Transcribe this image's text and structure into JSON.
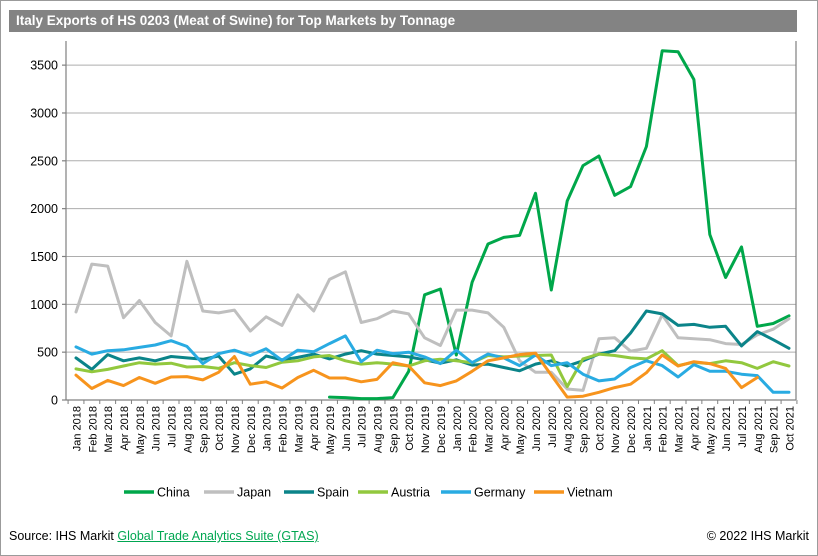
{
  "title": "Italy Exports of HS 0203 (Meat of Swine) for Top Markets by Tonnage",
  "footer": {
    "source_prefix": "Source: IHS Markit ",
    "source_link": "Global Trade Analytics Suite (GTAS)",
    "copyright": "© 2022 IHS Markit"
  },
  "colors": {
    "title_bar_bg": "#838383",
    "title_text": "#ffffff",
    "gridline": "#adadad",
    "axis": "#808080",
    "label_text": "#000000",
    "link_green": "#00a651"
  },
  "chart_data": {
    "type": "line",
    "title": "Italy Exports of HS 0203 (Meat of Swine) for Top Markets by Tonnage",
    "xlabel": "",
    "ylabel": "",
    "ylim": [
      0,
      3700
    ],
    "yticks": [
      0,
      500,
      1000,
      1500,
      2000,
      2500,
      3000,
      3500
    ],
    "grid": "horizontal",
    "legend_position": "bottom",
    "categories": [
      "Jan 2018",
      "Feb 2018",
      "Mar 2018",
      "Apr 2018",
      "May 2018",
      "Jun 2018",
      "Jul 2018",
      "Aug 2018",
      "Sep 2018",
      "Oct 2018",
      "Nov 2018",
      "Dec 2018",
      "Jan 2019",
      "Feb 2019",
      "Mar 2019",
      "Apr 2019",
      "May 2019",
      "Jun 2019",
      "Jul 2019",
      "Aug 2019",
      "Sep 2019",
      "Oct 2019",
      "Nov 2019",
      "Dec 2019",
      "Jan 2020",
      "Feb 2020",
      "Mar 2020",
      "Apr 2020",
      "May 2020",
      "Jun 2020",
      "Jul 2020",
      "Aug 2020",
      "Sep 2020",
      "Oct 2020",
      "Nov 2020",
      "Dec 2020",
      "Jan 2021",
      "Feb 2021",
      "Mar 2021",
      "Apr 2021",
      "May 2021",
      "Jun 2021",
      "Jul 2021",
      "Aug 2021",
      "Sep 2021",
      "Oct 2021"
    ],
    "series": [
      {
        "name": "China",
        "color": "#00a74a",
        "values": [
          null,
          null,
          null,
          null,
          null,
          null,
          null,
          null,
          null,
          null,
          null,
          null,
          null,
          null,
          null,
          null,
          30,
          25,
          15,
          15,
          25,
          300,
          1100,
          1160,
          470,
          1230,
          1630,
          1700,
          1720,
          2160,
          1150,
          2080,
          2450,
          2550,
          2140,
          2230,
          2650,
          3650,
          3640,
          3350,
          1730,
          1280,
          1600,
          770,
          800,
          880
        ]
      },
      {
        "name": "Japan",
        "color": "#bfbfbf",
        "values": [
          920,
          1420,
          1400,
          860,
          1040,
          810,
          670,
          1450,
          930,
          910,
          940,
          720,
          870,
          780,
          1100,
          930,
          1260,
          1340,
          810,
          850,
          930,
          900,
          650,
          570,
          940,
          940,
          910,
          760,
          410,
          290,
          290,
          115,
          100,
          640,
          650,
          510,
          540,
          890,
          650,
          640,
          630,
          590,
          580,
          680,
          740,
          850
        ]
      },
      {
        "name": "Spain",
        "color": "#0b8489",
        "values": [
          440,
          320,
          475,
          410,
          440,
          410,
          455,
          440,
          425,
          460,
          270,
          325,
          460,
          420,
          445,
          480,
          430,
          480,
          515,
          480,
          465,
          450,
          420,
          385,
          420,
          365,
          375,
          340,
          305,
          375,
          410,
          355,
          410,
          480,
          515,
          700,
          930,
          900,
          780,
          790,
          760,
          770,
          565,
          715,
          630,
          540
        ]
      },
      {
        "name": "Austria",
        "color": "#92c83e",
        "values": [
          325,
          295,
          320,
          355,
          390,
          375,
          385,
          345,
          350,
          330,
          390,
          360,
          340,
          395,
          410,
          450,
          465,
          410,
          375,
          390,
          375,
          355,
          410,
          425,
          410,
          390,
          465,
          450,
          460,
          465,
          470,
          140,
          430,
          480,
          465,
          440,
          430,
          515,
          360,
          395,
          380,
          410,
          390,
          330,
          400,
          355
        ]
      },
      {
        "name": "Germany",
        "color": "#29abe2",
        "values": [
          555,
          480,
          515,
          525,
          550,
          575,
          620,
          560,
          380,
          485,
          520,
          465,
          535,
          415,
          520,
          505,
          590,
          670,
          400,
          520,
          485,
          500,
          450,
          380,
          520,
          390,
          480,
          440,
          360,
          470,
          360,
          390,
          270,
          200,
          220,
          340,
          410,
          360,
          240,
          370,
          300,
          300,
          270,
          255,
          80,
          80
        ]
      },
      {
        "name": "Vietnam",
        "color": "#f7941d",
        "values": [
          260,
          120,
          205,
          150,
          235,
          175,
          240,
          245,
          210,
          290,
          455,
          165,
          190,
          125,
          235,
          310,
          230,
          230,
          190,
          215,
          390,
          355,
          180,
          150,
          200,
          300,
          410,
          440,
          475,
          490,
          260,
          30,
          40,
          80,
          130,
          165,
          285,
          470,
          355,
          400,
          380,
          330,
          130,
          235,
          null,
          null
        ]
      }
    ]
  }
}
